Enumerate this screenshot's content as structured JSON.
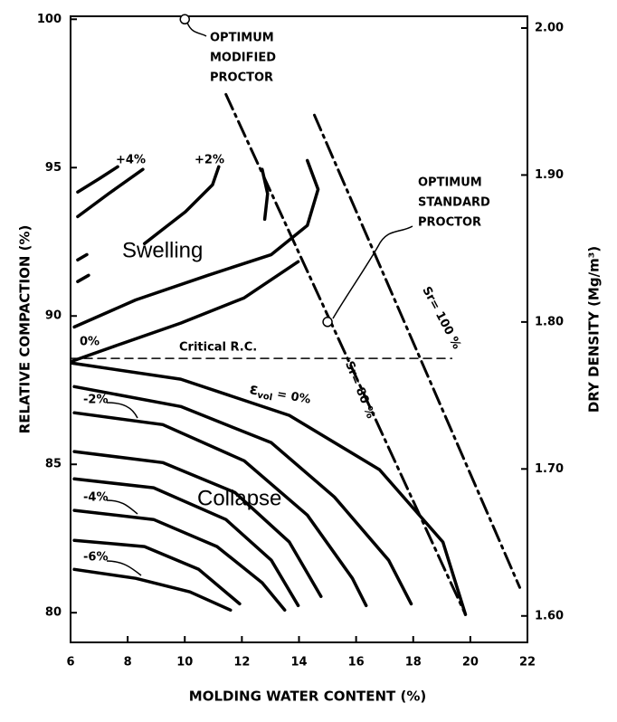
{
  "chart_data": {
    "type": "line",
    "xlabel": "MOLDING WATER CONTENT (%)",
    "ylabel": "RELATIVE COMPACTION (%)",
    "y2label": "DRY DENSITY (Mg/m³)",
    "xlim": [
      6,
      22
    ],
    "xticks": [
      6,
      8,
      10,
      12,
      14,
      16,
      18,
      20,
      22
    ],
    "ylim": [
      79.0,
      100.1
    ],
    "yticks": [
      80,
      85,
      90,
      95,
      100
    ],
    "y2lim": [
      1.582,
      2.008
    ],
    "y2ticks": [
      {
        "value": 1.6,
        "label": "1.60"
      },
      {
        "value": 1.7,
        "label": "1.70"
      },
      {
        "value": 1.8,
        "label": "1.80"
      },
      {
        "value": 1.9,
        "label": "1.90"
      },
      {
        "value": 2.0,
        "label": "2.00"
      }
    ],
    "color": "#000000",
    "series": [
      {
        "style": "solid",
        "x": [
          6.25,
          7.01,
          7.65
        ],
        "y": [
          94.18,
          94.63,
          95.03
        ]
      },
      {
        "style": "solid",
        "x": [
          6.25,
          7.33,
          8.53
        ],
        "y": [
          93.35,
          94.12,
          94.94
        ]
      },
      {
        "style": "solid",
        "x": [
          6.25,
          6.57
        ],
        "y": [
          91.89,
          92.07
        ]
      },
      {
        "style": "solid",
        "x": [
          6.25,
          6.63
        ],
        "y": [
          91.16,
          91.37
        ]
      },
      {
        "style": "solid",
        "x": [
          8.59,
          10.02,
          10.97,
          11.19
        ],
        "y": [
          92.44,
          93.51,
          94.42,
          95.03
        ]
      },
      {
        "style": "solid",
        "x": [
          12.71,
          12.9,
          12.8
        ],
        "y": [
          94.94,
          94.12,
          93.26
        ]
      },
      {
        "style": "solid",
        "x": [
          6.13,
          8.28,
          10.81,
          13.03,
          14.29,
          14.67,
          14.29
        ],
        "y": [
          89.63,
          90.54,
          91.37,
          92.07,
          93.05,
          94.27,
          95.24
        ]
      },
      {
        "style": "solid",
        "x": [
          6.06,
          7.65,
          9.86,
          12.08,
          13.97
        ],
        "y": [
          88.48,
          89.02,
          89.76,
          90.61,
          91.83
        ]
      },
      {
        "style": "solid",
        "x": [
          6.06,
          9.86,
          13.66,
          16.82,
          19.04,
          19.83
        ],
        "y": [
          88.41,
          87.87,
          86.65,
          84.82,
          82.38,
          79.94
        ]
      },
      {
        "style": "solid",
        "x": [
          6.13,
          9.86,
          13.03,
          15.24,
          17.14,
          17.93
        ],
        "y": [
          87.62,
          86.95,
          85.73,
          83.9,
          81.77,
          80.3
        ]
      },
      {
        "style": "solid",
        "x": [
          6.13,
          9.23,
          12.08,
          14.29,
          15.87,
          16.35
        ],
        "y": [
          86.74,
          86.34,
          85.12,
          83.29,
          81.16,
          80.24
        ]
      },
      {
        "style": "solid",
        "x": [
          6.13,
          9.23,
          11.76,
          13.66,
          14.77
        ],
        "y": [
          85.43,
          85.06,
          84.05,
          82.38,
          80.55
        ]
      },
      {
        "style": "solid",
        "x": [
          6.13,
          8.91,
          11.44,
          13.03,
          13.97
        ],
        "y": [
          84.51,
          84.21,
          83.14,
          81.77,
          80.24
        ]
      },
      {
        "style": "solid",
        "x": [
          6.13,
          8.91,
          11.13,
          12.71,
          13.5
        ],
        "y": [
          83.45,
          83.14,
          82.23,
          81.01,
          80.09
        ]
      },
      {
        "style": "solid",
        "x": [
          6.13,
          8.59,
          10.49,
          11.92
        ],
        "y": [
          82.44,
          82.23,
          81.46,
          80.3
        ]
      },
      {
        "style": "solid",
        "x": [
          6.13,
          8.28,
          10.18,
          11.6
        ],
        "y": [
          81.46,
          81.16,
          80.7,
          80.09
        ]
      },
      {
        "style": "dash-dot",
        "x": [
          11.44,
          19.83
        ],
        "y": [
          97.47,
          79.94
        ]
      },
      {
        "style": "dash-dot",
        "x": [
          14.54,
          21.73
        ],
        "y": [
          96.77,
          80.85
        ]
      },
      {
        "style": "dashed",
        "x": [
          6.0,
          19.35
        ],
        "y": [
          88.57,
          88.57
        ]
      }
    ],
    "points": [
      {
        "x": 10,
        "y": 100
      },
      {
        "x": 15,
        "y": 89.8
      }
    ],
    "annotations": [
      {
        "text": [
          "OPTIMUM",
          "MODIFIED",
          "PROCTOR"
        ]
      },
      {
        "text": [
          "OPTIMUM",
          "STANDARD",
          "PROCTOR"
        ]
      },
      {
        "text": [
          "+4%"
        ]
      },
      {
        "text": [
          "+2%"
        ]
      },
      {
        "text": [
          "0%"
        ]
      },
      {
        "text": [
          "-2%"
        ]
      },
      {
        "text": [
          "-4%"
        ]
      },
      {
        "text": [
          "-6%"
        ]
      },
      {
        "text": [
          "Critical R.C."
        ]
      },
      {
        "text": [
          "ε",
          "vol",
          " = 0%"
        ]
      },
      {
        "text": [
          "Sr= 80 %"
        ]
      },
      {
        "text": [
          "Sr= 100 %"
        ]
      },
      {
        "text": [
          "Swelling"
        ]
      },
      {
        "text": [
          "Collapse"
        ]
      }
    ]
  }
}
